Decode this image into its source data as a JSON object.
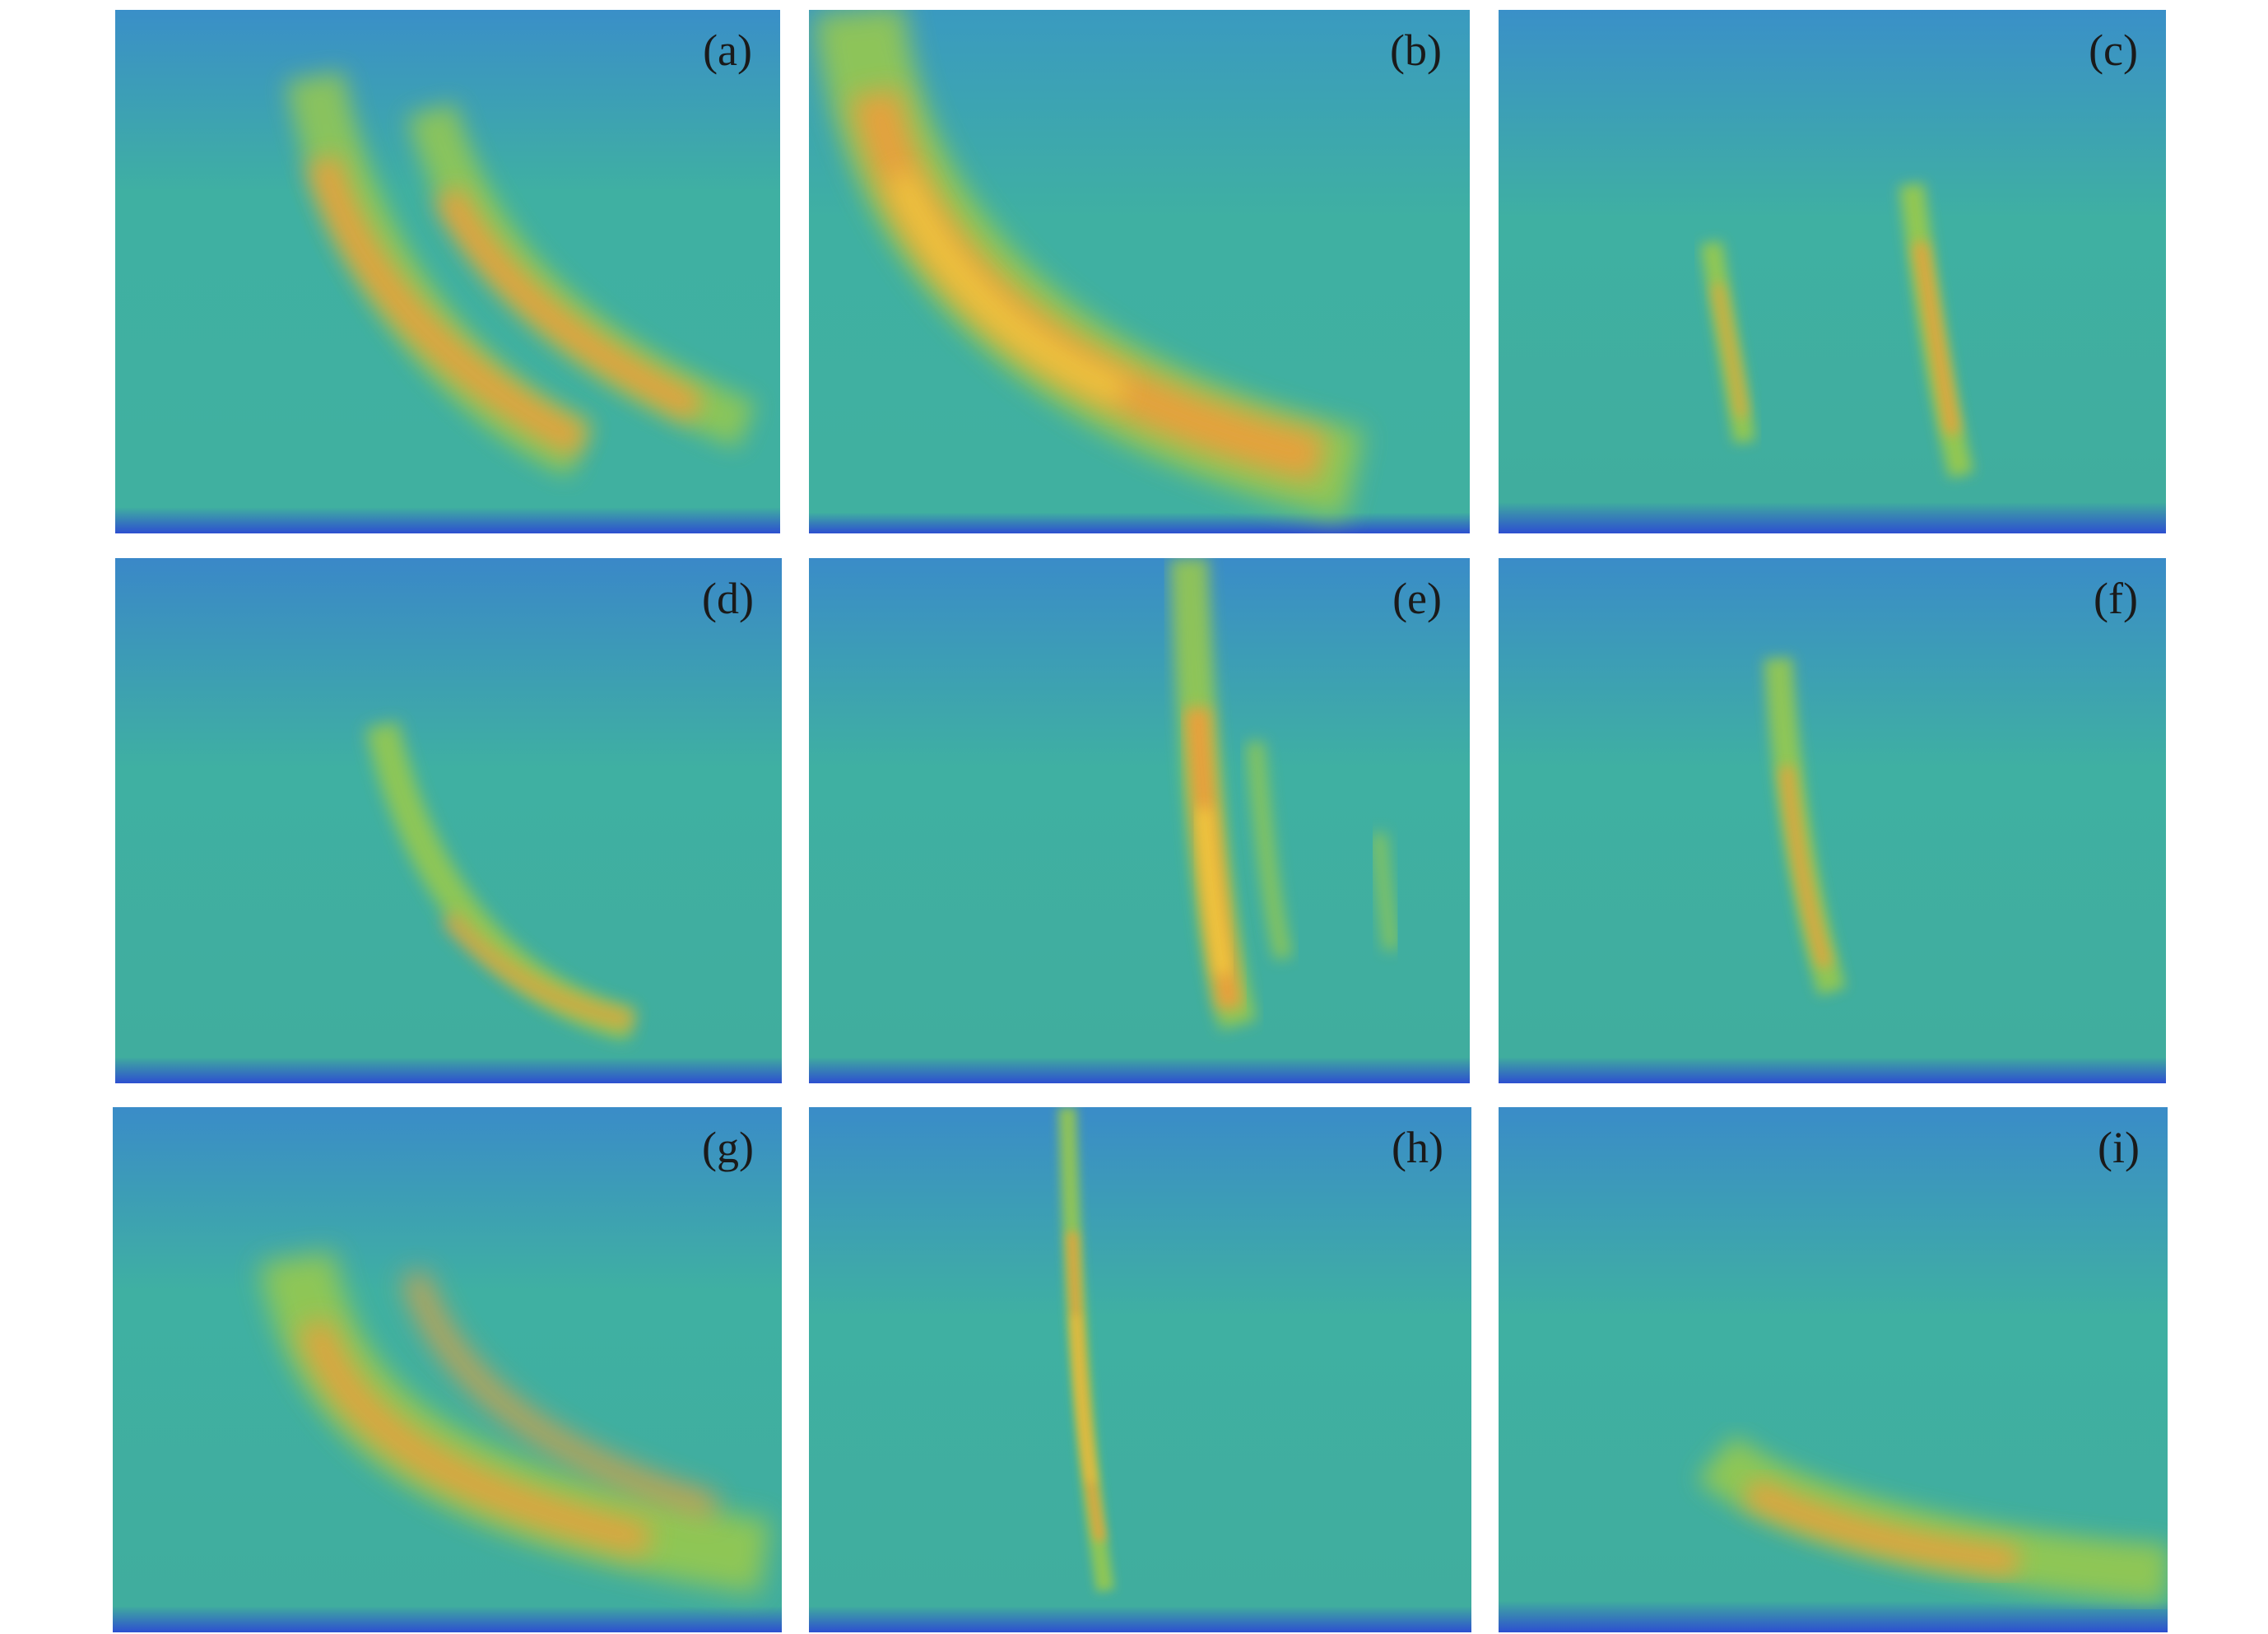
{
  "panels": [
    {
      "label": "(a)"
    },
    {
      "label": "(b)"
    },
    {
      "label": "(c)"
    },
    {
      "label": "(d)"
    },
    {
      "label": "(e)"
    },
    {
      "label": "(f)"
    },
    {
      "label": "(g)"
    },
    {
      "label": "(h)"
    },
    {
      "label": "(i)"
    }
  ],
  "colors": {
    "background_teal": "#3fb0a2",
    "background_blue": "#3d86c8",
    "deep_blue": "#2d4fd0",
    "signal_orange": "#ef9e3a",
    "signal_yellow": "#f4d83c",
    "signal_green": "#9ccb4a"
  }
}
